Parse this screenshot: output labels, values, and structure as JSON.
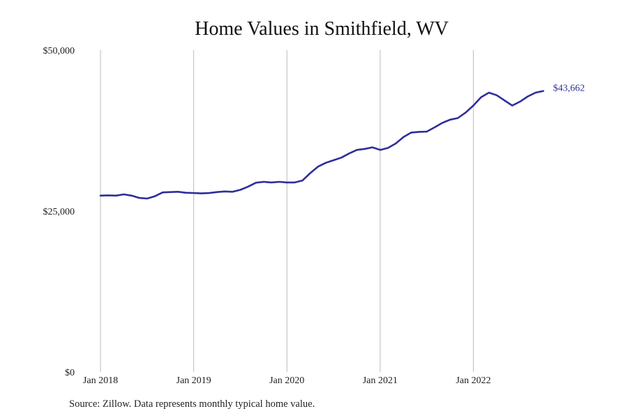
{
  "title": "Home Values in Smithfield, WV",
  "source": "Source: Zillow. Data represents monthly typical home value.",
  "colors": {
    "line": "#2e2e9a",
    "grid": "#bbbbbb",
    "text": "#222222"
  },
  "chart_data": {
    "type": "line",
    "title": "Home Values in Smithfield, WV",
    "xlabel": "",
    "ylabel": "",
    "ylim": [
      0,
      50000
    ],
    "y_ticks": [
      0,
      25000,
      50000
    ],
    "y_tick_labels": [
      "$0",
      "$25,000",
      "$50,000"
    ],
    "x_ticks": [
      "2018-01",
      "2019-01",
      "2020-01",
      "2021-01",
      "2022-01"
    ],
    "x_tick_labels": [
      "Jan 2018",
      "Jan 2019",
      "Jan 2020",
      "Jan 2021",
      "Jan 2022"
    ],
    "grid": "vertical lines at year ticks",
    "end_label": "$43,662",
    "series": [
      {
        "x": [
          "2018-01",
          "2018-02",
          "2018-03",
          "2018-04",
          "2018-05",
          "2018-06",
          "2018-07",
          "2018-08",
          "2018-09",
          "2018-10",
          "2018-11",
          "2018-12",
          "2019-01",
          "2019-02",
          "2019-03",
          "2019-04",
          "2019-05",
          "2019-06",
          "2019-07",
          "2019-08",
          "2019-09",
          "2019-10",
          "2019-11",
          "2019-12",
          "2020-01",
          "2020-02",
          "2020-03",
          "2020-04",
          "2020-05",
          "2020-06",
          "2020-07",
          "2020-08",
          "2020-09",
          "2020-10",
          "2020-11",
          "2020-12",
          "2021-01",
          "2021-02",
          "2021-03",
          "2021-04",
          "2021-05",
          "2021-06",
          "2021-07",
          "2021-08",
          "2021-09",
          "2021-10",
          "2021-11",
          "2021-12",
          "2022-01",
          "2022-02",
          "2022-03",
          "2022-04",
          "2022-05",
          "2022-06",
          "2022-07",
          "2022-08",
          "2022-09",
          "2022-10"
        ],
        "values": [
          27400,
          27450,
          27400,
          27600,
          27400,
          27050,
          26950,
          27300,
          27900,
          27950,
          28000,
          27850,
          27800,
          27750,
          27800,
          27950,
          28050,
          28000,
          28300,
          28800,
          29400,
          29550,
          29450,
          29550,
          29450,
          29450,
          29750,
          30900,
          31900,
          32500,
          32900,
          33300,
          33950,
          34500,
          34650,
          34900,
          34500,
          34800,
          35500,
          36500,
          37200,
          37300,
          37350,
          38000,
          38700,
          39200,
          39450,
          40300,
          41400,
          42700,
          43400,
          43000,
          42200,
          41400,
          42000,
          42800,
          43400,
          43662
        ]
      }
    ]
  }
}
